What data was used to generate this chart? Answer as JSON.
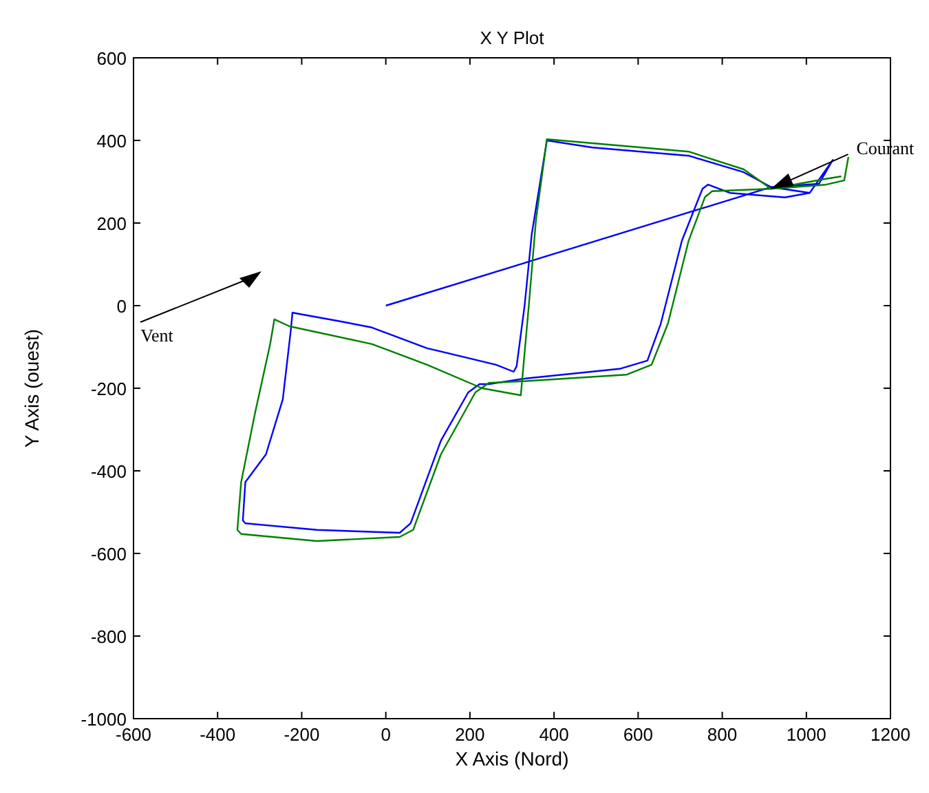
{
  "chart_data": {
    "type": "line",
    "title": "X Y Plot",
    "xlabel": "X Axis (Nord)",
    "ylabel": "Y Axis (ouest)",
    "xlim": [
      -600,
      1200
    ],
    "xticks": [
      -600,
      -400,
      -200,
      0,
      200,
      400,
      600,
      800,
      1000,
      1200
    ],
    "ylim": [
      -1000,
      600
    ],
    "yticks": [
      -1000,
      -800,
      -600,
      -400,
      -200,
      0,
      200,
      400,
      600
    ],
    "grid": false,
    "annotations": [
      {
        "text": "Courant",
        "x": 916,
        "y": 283
      },
      "Vent"
    ],
    "series": [
      {
        "color": "#0000ff",
        "x": [
          0,
          916,
          1008,
          1063,
          1030,
          916,
          851,
          720,
          491,
          383,
          347,
          330,
          311,
          304,
          262,
          98,
          -33,
          -98,
          -222,
          -226,
          -245,
          -285,
          -334,
          -340,
          -334,
          -164,
          33,
          59,
          131,
          196,
          223,
          245,
          327,
          556,
          622,
          654,
          704,
          753,
          766,
          818,
          949,
          1008
        ],
        "values": [
          0,
          287,
          273,
          353,
          295,
          287,
          323,
          363,
          383,
          400,
          173,
          0,
          -147,
          -160,
          -143,
          -103,
          -53,
          -40,
          -17,
          -60,
          -227,
          -360,
          -427,
          -520,
          -527,
          -543,
          -550,
          -527,
          -327,
          -210,
          -190,
          -190,
          -177,
          -153,
          -133,
          -43,
          157,
          283,
          293,
          273,
          262,
          273
        ]
      },
      {
        "color": "#008000",
        "x": [
          1100,
          1090,
          1047,
          916,
          851,
          720,
          383,
          357,
          340,
          321,
          229,
          98,
          -33,
          -229,
          -265,
          -275,
          -311,
          -344,
          -353,
          -344,
          -164,
          33,
          65,
          131,
          213,
          245,
          327,
          573,
          632,
          671,
          720,
          759,
          776,
          916,
          1047,
          1083
        ],
        "values": [
          360,
          303,
          293,
          283,
          330,
          373,
          403,
          207,
          0,
          -217,
          -200,
          -143,
          -93,
          -50,
          -33,
          -93,
          -260,
          -427,
          -543,
          -553,
          -570,
          -560,
          -543,
          -360,
          -210,
          -187,
          -183,
          -167,
          -143,
          -43,
          157,
          263,
          277,
          283,
          307,
          313
        ]
      }
    ]
  }
}
